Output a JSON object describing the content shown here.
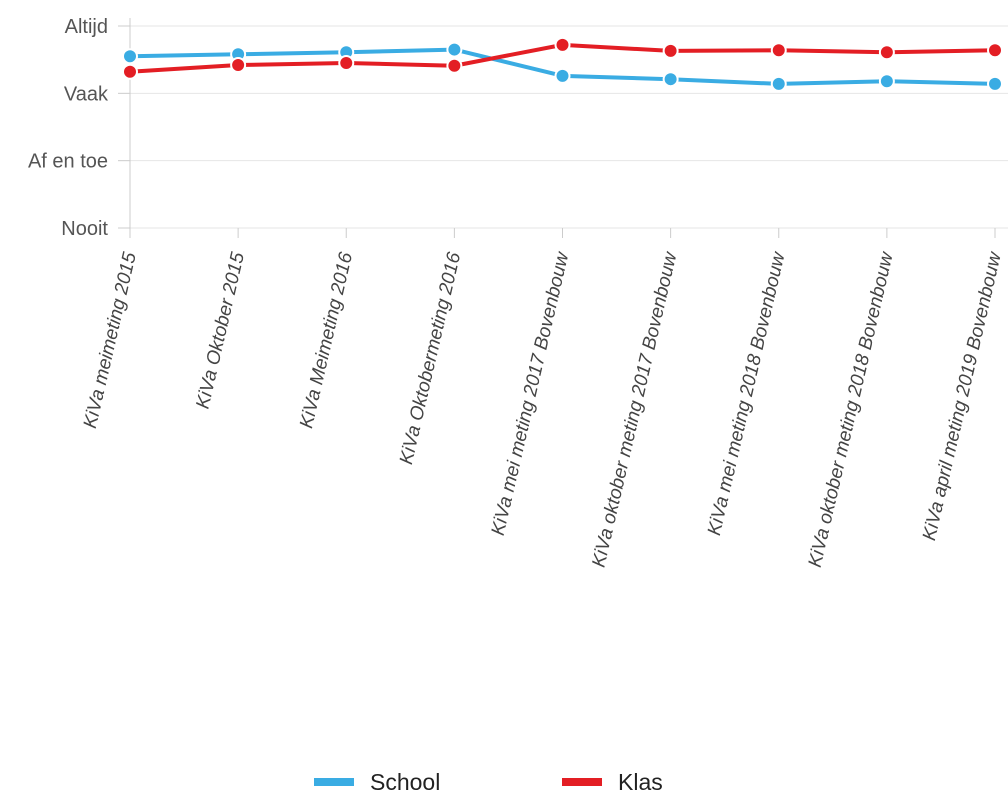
{
  "chart_data": {
    "type": "line",
    "categories": [
      "KiVa meimeting 2015",
      "KiVa Oktober 2015",
      "KiVa Meimeting 2016",
      "KiVa Oktobermeting 2016",
      "KiVa mei meting 2017 Bovenbouw",
      "KiVa oktober meting 2017 Bovenbouw",
      "KiVa mei meting 2018 Bovenbouw",
      "KiVa oktober meting 2018 Bovenbouw",
      "KiVa april meting 2019 Bovenbouw"
    ],
    "y_ticks": [
      "Nooit",
      "Af en toe",
      "Vaak",
      "Altijd"
    ],
    "ylim": [
      0,
      3
    ],
    "series": [
      {
        "name": "School",
        "color": "#3aace3",
        "values": [
          2.55,
          2.58,
          2.61,
          2.65,
          2.26,
          2.21,
          2.14,
          2.18,
          2.14
        ]
      },
      {
        "name": "Klas",
        "color": "#e31e24",
        "values": [
          2.32,
          2.42,
          2.45,
          2.41,
          2.72,
          2.63,
          2.64,
          2.61,
          2.64
        ]
      }
    ],
    "grid": true,
    "legend": "bottom-center"
  }
}
